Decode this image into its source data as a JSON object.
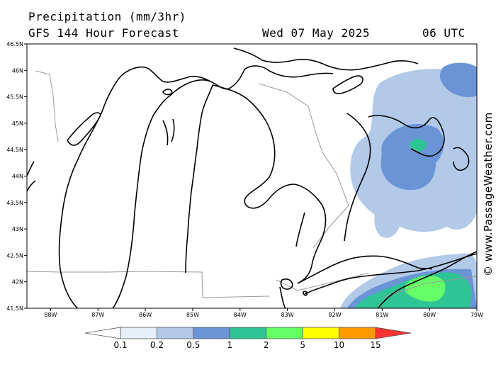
{
  "header": {
    "title": "Precipitation (mm/3hr)",
    "subtitle": "GFS 144 Hour Forecast",
    "date": "Wed 07 May 2025",
    "time": "06 UTC"
  },
  "map": {
    "lat_labels": [
      "46.5N",
      "46N",
      "45.5N",
      "45N",
      "44.5N",
      "44N",
      "43.5N",
      "43N",
      "42.5N",
      "42N",
      "41.5N"
    ],
    "lon_labels": [
      "88W",
      "87W",
      "86W",
      "85W",
      "84W",
      "83W",
      "82W",
      "81W",
      "80W",
      "79W"
    ],
    "extent": {
      "lon_min": -88.5,
      "lon_max": -79.0,
      "lat_min": 41.5,
      "lat_max": 46.5
    },
    "colors": {
      "land_border": "#000000",
      "state_lines": "#999999"
    }
  },
  "legend": {
    "labels": [
      "0.1",
      "0.2",
      "0.5",
      "1",
      "2",
      "5",
      "10",
      "15"
    ],
    "colors": [
      "#ffffff",
      "#e6eef8",
      "#b2c9e8",
      "#6b94d6",
      "#2ec496",
      "#66ff66",
      "#ffff00",
      "#ff9900",
      "#ff3333"
    ]
  },
  "watermark": "© www.PassageWeather.com"
}
